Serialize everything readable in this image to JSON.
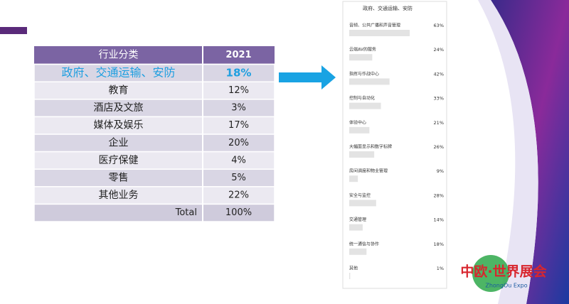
{
  "table": {
    "header": [
      "行业分类",
      "2021"
    ],
    "rows": [
      [
        "政府、交通运输、安防",
        "18%"
      ],
      [
        "教育",
        "12%"
      ],
      [
        "酒店及文旅",
        "3%"
      ],
      [
        "媒体及娱乐",
        "17%"
      ],
      [
        "企业",
        "20%"
      ],
      [
        "医疗保健",
        "4%"
      ],
      [
        "零售",
        "5%"
      ],
      [
        "其他业务",
        "22%"
      ],
      [
        "Total",
        "100%"
      ]
    ]
  },
  "survey": {
    "title": "政府、交通运输、安防",
    "categories": [
      "音频、公共广播和声音管理",
      "云端AV的服务",
      "指挥与作战中心",
      "控制与自动化",
      "体验中心",
      "大幅面显示和数字标牌",
      "房间调度和物业管理",
      "安全与监控",
      "交通管理",
      "统一通信与协作",
      "其他"
    ],
    "values": [
      63,
      24,
      42,
      33,
      21,
      26,
      9,
      28,
      14,
      18,
      1
    ],
    "value_labels": [
      "63%",
      "24%",
      "42%",
      "33%",
      "21%",
      "26%",
      "9%",
      "28%",
      "14%",
      "18%",
      "1%"
    ]
  },
  "logo": {
    "title": "中欧·世界展会",
    "subtitle": "ZhongOu Expo"
  }
}
